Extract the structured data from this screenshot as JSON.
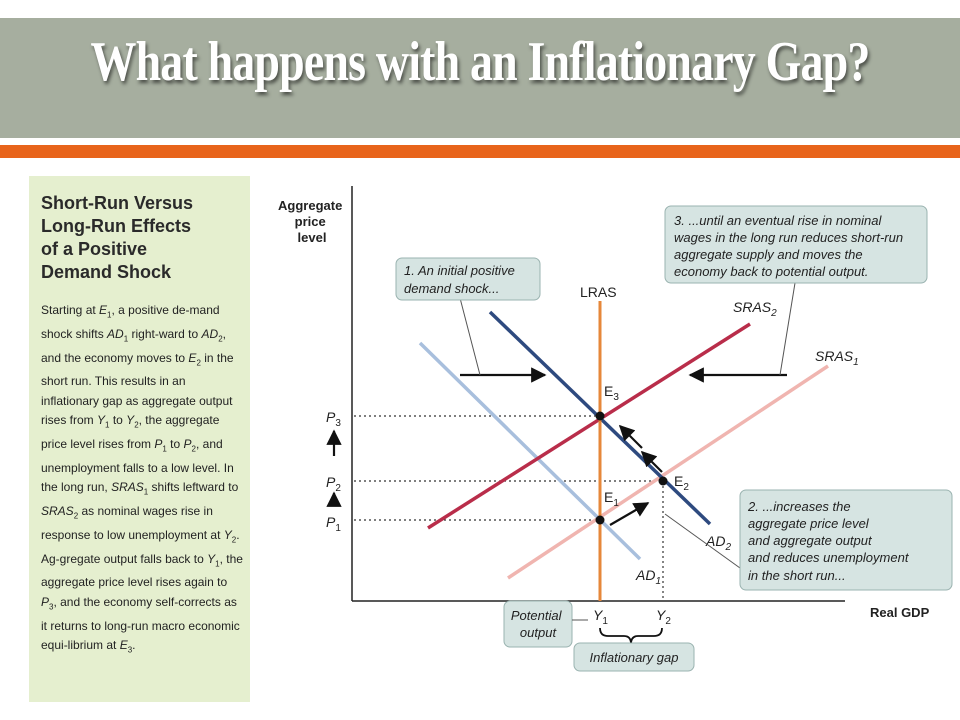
{
  "slide": {
    "title": "What happens with an Inflationary Gap?"
  },
  "sidebar": {
    "heading_lines": [
      "Short-Run Versus",
      "Long-Run Effects",
      "of a Positive",
      "Demand Shock"
    ],
    "body_html": "Starting at <i>E</i><sub>1</sub>, a positive de-mand shock shifts <i>AD</i><sub>1</sub> right-ward to <i>AD</i><sub>2</sub>, and the economy moves to <i>E</i><sub>2</sub> in the short run. This results in an inflationary gap as aggregate output rises from <i>Y</i><sub>1</sub> to <i>Y</i><sub>2</sub>, the aggregate price level rises from <i>P</i><sub>1</sub> to <i>P</i><sub>2</sub>, and unemployment falls to a low level. In the long run, <i>SRAS</i><sub>1</sub> shifts leftward to <i>SRAS</i><sub>2</sub> as nominal wages rise in response to low unemployment at <i>Y</i><sub>2</sub>. Ag-gregate output falls back to <i>Y</i><sub>1</sub>, the aggregate price level rises again to <i>P</i><sub>3</sub>, and the economy self-corrects as it returns to long-run macro economic equi-librium at <i>E</i><sub>3</sub>."
  },
  "graph": {
    "y_axis_label": [
      "Aggregate",
      "price",
      "level"
    ],
    "x_axis_label": "Real GDP",
    "curves": {
      "lras": "LRAS",
      "sras1": "SRAS",
      "sras1_sub": "1",
      "sras2": "SRAS",
      "sras2_sub": "2",
      "ad1": "AD",
      "ad1_sub": "1",
      "ad2": "AD",
      "ad2_sub": "2"
    },
    "points": {
      "e1": "E",
      "e1_sub": "1",
      "e2": "E",
      "e2_sub": "2",
      "e3": "E",
      "e3_sub": "3"
    },
    "price_ticks": [
      {
        "label": "P",
        "sub": "3"
      },
      {
        "label": "P",
        "sub": "2"
      },
      {
        "label": "P",
        "sub": "1"
      }
    ],
    "output_ticks": [
      {
        "label": "Y",
        "sub": "1"
      },
      {
        "label": "Y",
        "sub": "2"
      }
    ],
    "callouts": {
      "step1": [
        "1. An initial positive",
        "demand shock..."
      ],
      "step2": [
        "2. ...increases the",
        "aggregate price level",
        "and aggregate output",
        "and reduces unemployment",
        "in the short run..."
      ],
      "step3": [
        "3. ...until an eventual rise in nominal",
        "wages in the long run reduces short-run",
        "aggregate supply and moves the",
        "economy back to potential output."
      ],
      "potential_output": [
        "Potential",
        "output"
      ],
      "inflationary_gap": "Inflationary gap"
    },
    "colors": {
      "lras": "#e6873a",
      "sras1": "#f0b5b0",
      "sras2": "#b92d4a",
      "ad1": "#a8bfdd",
      "ad2": "#2e4a7f",
      "callout_fill": "#d6e4e2",
      "callout_stroke": "#9ab3b0"
    }
  }
}
